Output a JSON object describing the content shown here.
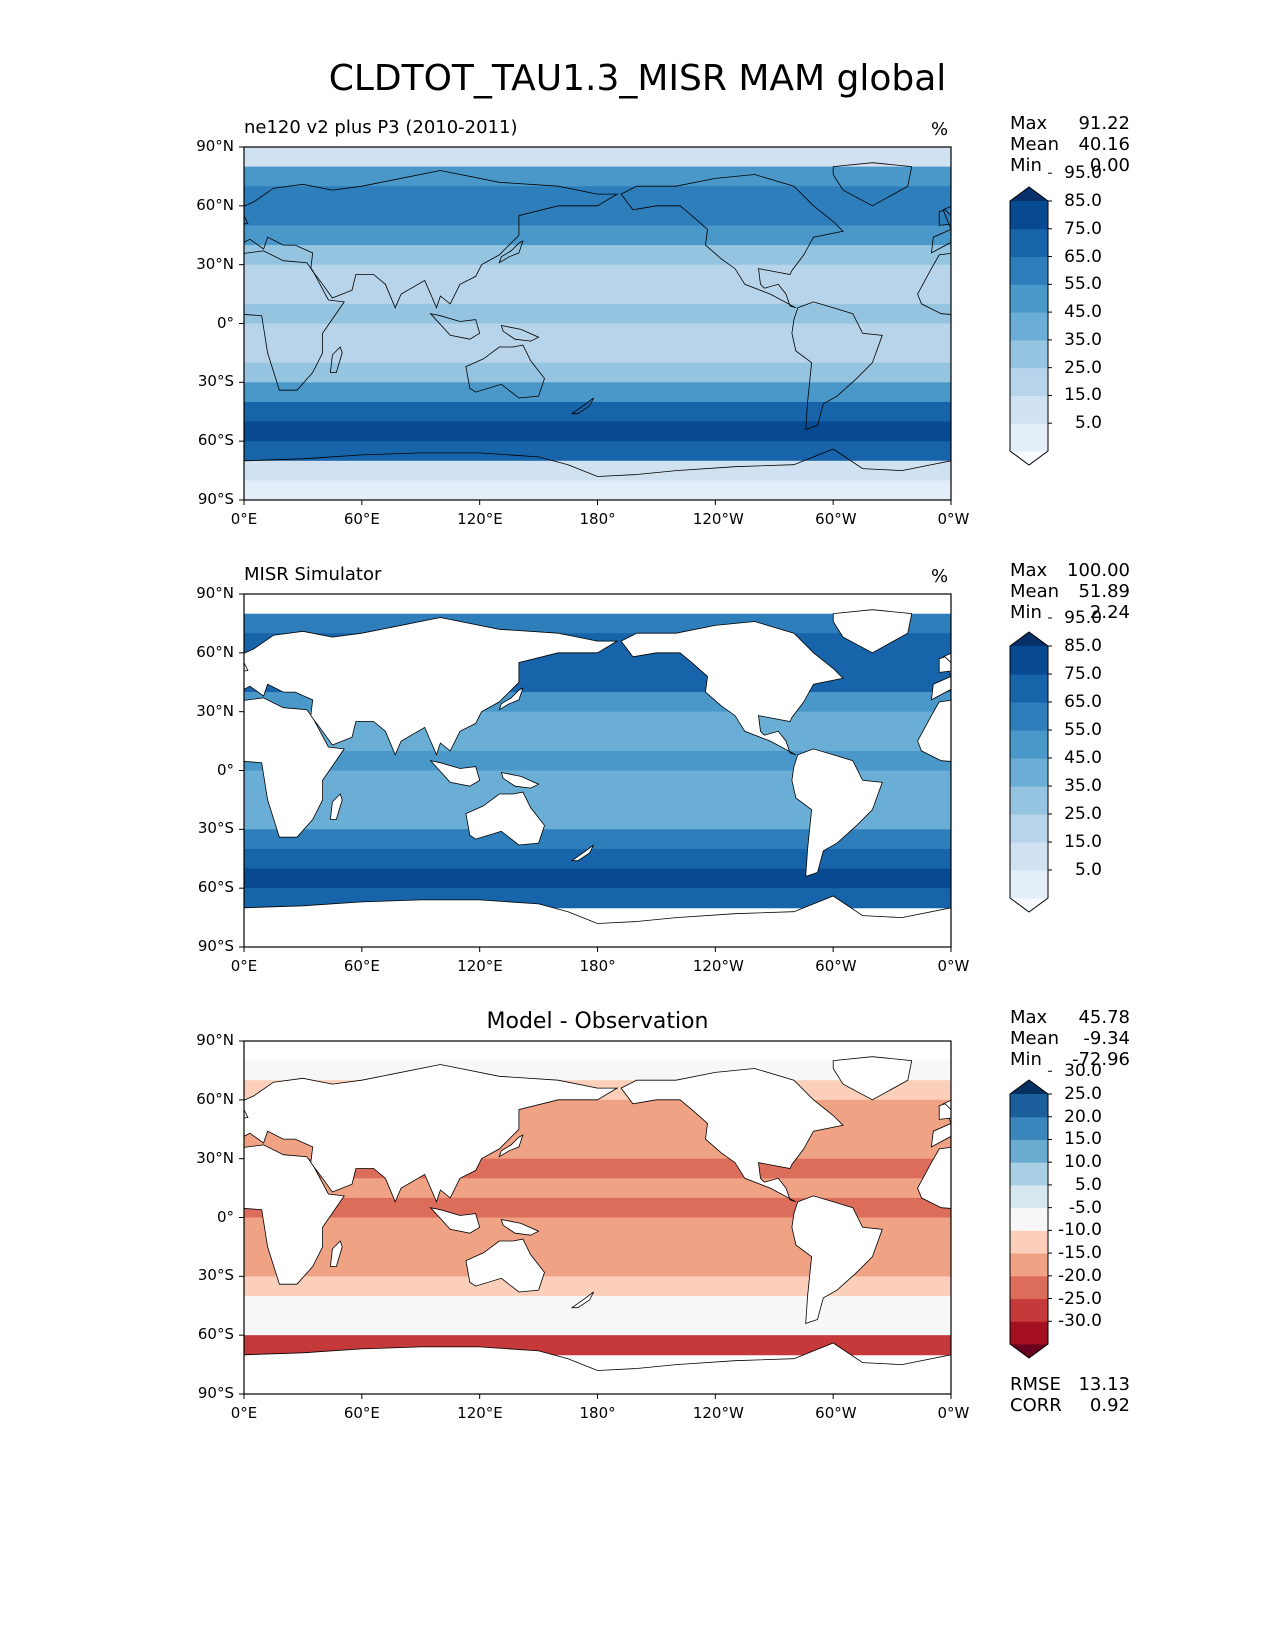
{
  "figure": {
    "title": "CLDTOT_TAU1.3_MISR MAM global"
  },
  "chart_data": [
    {
      "type": "heatmap",
      "panel": "test",
      "title_left": "ne120 v2 plus P3 (2010-2011)",
      "title_center": "",
      "units": "%",
      "x_ticks": [
        "0°E",
        "60°E",
        "120°E",
        "180°",
        "120°W",
        "60°W",
        "0°W"
      ],
      "y_ticks": [
        "90°N",
        "60°N",
        "30°N",
        "0°",
        "30°S",
        "60°S",
        "90°S"
      ],
      "xlim": [
        0,
        360
      ],
      "ylim": [
        -90,
        90
      ],
      "stats": [
        {
          "label": "Max",
          "value": "91.22"
        },
        {
          "label": "Mean",
          "value": "40.16"
        },
        {
          "label": "Min",
          "value": "0.00"
        }
      ],
      "colorbar": {
        "levels": [
          0,
          5,
          15,
          25,
          35,
          45,
          55,
          65,
          75,
          85,
          95,
          100
        ],
        "tick_labels": [
          "5.0",
          "15.0",
          "25.0",
          "35.0",
          "45.0",
          "55.0",
          "65.0",
          "75.0",
          "85.0",
          "95.0"
        ],
        "colors": [
          "#f7fbff",
          "#e3eef9",
          "#d0e1f2",
          "#b7d4ea",
          "#94c4df",
          "#6aaed6",
          "#4a98c9",
          "#2e7ebc",
          "#1764ab",
          "#084a91",
          "#08306b"
        ]
      },
      "zonal_mean": [
        {
          "lat": 85,
          "value": 20
        },
        {
          "lat": 75,
          "value": 55
        },
        {
          "lat": 65,
          "value": 70
        },
        {
          "lat": 55,
          "value": 65
        },
        {
          "lat": 45,
          "value": 60
        },
        {
          "lat": 35,
          "value": 35
        },
        {
          "lat": 25,
          "value": 25
        },
        {
          "lat": 15,
          "value": 28
        },
        {
          "lat": 5,
          "value": 38
        },
        {
          "lat": -5,
          "value": 33
        },
        {
          "lat": -15,
          "value": 30
        },
        {
          "lat": -25,
          "value": 35
        },
        {
          "lat": -35,
          "value": 55
        },
        {
          "lat": -45,
          "value": 75
        },
        {
          "lat": -55,
          "value": 85
        },
        {
          "lat": -65,
          "value": 75
        },
        {
          "lat": -75,
          "value": 15
        },
        {
          "lat": -85,
          "value": 8
        }
      ]
    },
    {
      "type": "heatmap",
      "panel": "reference",
      "title_left": "MISR Simulator",
      "title_center": "",
      "units": "%",
      "x_ticks": [
        "0°E",
        "60°E",
        "120°E",
        "180°",
        "120°W",
        "60°W",
        "0°W"
      ],
      "y_ticks": [
        "90°N",
        "60°N",
        "30°N",
        "0°",
        "30°S",
        "60°S",
        "90°S"
      ],
      "xlim": [
        0,
        360
      ],
      "ylim": [
        -90,
        90
      ],
      "stats": [
        {
          "label": "Max",
          "value": "100.00"
        },
        {
          "label": "Mean",
          "value": "51.89"
        },
        {
          "label": "Min",
          "value": "2.24"
        }
      ],
      "colorbar": {
        "levels": [
          0,
          5,
          15,
          25,
          35,
          45,
          55,
          65,
          75,
          85,
          95,
          100
        ],
        "tick_labels": [
          "5.0",
          "15.0",
          "25.0",
          "35.0",
          "45.0",
          "55.0",
          "65.0",
          "75.0",
          "85.0",
          "95.0"
        ],
        "colors": [
          "#f7fbff",
          "#e3eef9",
          "#d0e1f2",
          "#b7d4ea",
          "#94c4df",
          "#6aaed6",
          "#4a98c9",
          "#2e7ebc",
          "#1764ab",
          "#084a91",
          "#08306b"
        ]
      },
      "zonal_mean": [
        {
          "lat": 75,
          "value": 70
        },
        {
          "lat": 65,
          "value": 75
        },
        {
          "lat": 55,
          "value": 80
        },
        {
          "lat": 45,
          "value": 75
        },
        {
          "lat": 35,
          "value": 55
        },
        {
          "lat": 25,
          "value": 45
        },
        {
          "lat": 15,
          "value": 50
        },
        {
          "lat": 5,
          "value": 60
        },
        {
          "lat": -5,
          "value": 50
        },
        {
          "lat": -15,
          "value": 45
        },
        {
          "lat": -25,
          "value": 50
        },
        {
          "lat": -35,
          "value": 65
        },
        {
          "lat": -45,
          "value": 80
        },
        {
          "lat": -55,
          "value": 85
        },
        {
          "lat": -65,
          "value": 80
        }
      ]
    },
    {
      "type": "heatmap",
      "panel": "difference",
      "title_left": "",
      "title_center": "Model - Observation",
      "units": "",
      "x_ticks": [
        "0°E",
        "60°E",
        "120°E",
        "180°",
        "120°W",
        "60°W",
        "0°W"
      ],
      "y_ticks": [
        "90°N",
        "60°N",
        "30°N",
        "0°",
        "30°S",
        "60°S",
        "90°S"
      ],
      "xlim": [
        0,
        360
      ],
      "ylim": [
        -90,
        90
      ],
      "stats": [
        {
          "label": "Max",
          "value": "45.78"
        },
        {
          "label": "Mean",
          "value": "-9.34"
        },
        {
          "label": "Min",
          "value": "-72.96"
        }
      ],
      "extra_stats": [
        {
          "label": "RMSE",
          "value": "13.13"
        },
        {
          "label": "CORR",
          "value": "0.92"
        }
      ],
      "colorbar": {
        "levels": [
          -35,
          -30,
          -25,
          -20,
          -15,
          -10,
          -5,
          5,
          10,
          15,
          20,
          25,
          30,
          35
        ],
        "tick_labels": [
          "-30.0",
          "-25.0",
          "-20.0",
          "-15.0",
          "-10.0",
          "-5.0",
          "5.0",
          "10.0",
          "15.0",
          "20.0",
          "25.0",
          "30.0"
        ],
        "colors": [
          "#67001f",
          "#a50f22",
          "#c5393a",
          "#dc6d5a",
          "#f0a284",
          "#fbcfb9",
          "#f7f7f7",
          "#d8e8f1",
          "#a9cfe5",
          "#6aacd0",
          "#3b86bc",
          "#1a5f9c",
          "#053061"
        ]
      },
      "zonal_mean": [
        {
          "lat": 75,
          "value": -2
        },
        {
          "lat": 65,
          "value": -8
        },
        {
          "lat": 55,
          "value": -12
        },
        {
          "lat": 45,
          "value": -12
        },
        {
          "lat": 35,
          "value": -12
        },
        {
          "lat": 25,
          "value": -18
        },
        {
          "lat": 15,
          "value": -15
        },
        {
          "lat": 5,
          "value": -20
        },
        {
          "lat": -5,
          "value": -14
        },
        {
          "lat": -15,
          "value": -15
        },
        {
          "lat": -25,
          "value": -14
        },
        {
          "lat": -35,
          "value": -8
        },
        {
          "lat": -45,
          "value": -2
        },
        {
          "lat": -55,
          "value": 0
        },
        {
          "lat": -65,
          "value": -22
        }
      ]
    }
  ]
}
